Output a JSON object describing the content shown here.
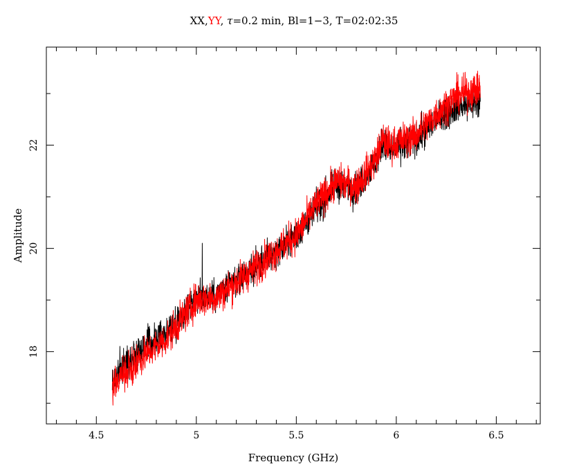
{
  "chart_data": {
    "type": "line",
    "title_parts": [
      {
        "text": "XX",
        "color": "#000000"
      },
      {
        "text": ",",
        "color": "#000000"
      },
      {
        "text": "YY",
        "color": "#ff0000"
      },
      {
        "text": ", ",
        "color": "#000000"
      },
      {
        "text": "τ",
        "color": "#000000",
        "italic": true
      },
      {
        "text": "=0.2 min, Bl=1−3, T=02:02:35",
        "color": "#000000"
      }
    ],
    "xlabel": "Frequency (GHz)",
    "ylabel": "Amplitude",
    "xlim": [
      4.25,
      6.72
    ],
    "ylim": [
      16.6,
      23.9
    ],
    "x_ticks": [
      {
        "value": 4.5,
        "label": "4.5"
      },
      {
        "value": 5,
        "label": "5"
      },
      {
        "value": 5.5,
        "label": "5.5"
      },
      {
        "value": 6,
        "label": "6"
      },
      {
        "value": 6.5,
        "label": "6.5"
      }
    ],
    "y_ticks": [
      {
        "value": 18,
        "label": "18"
      },
      {
        "value": 20,
        "label": "20"
      },
      {
        "value": 22,
        "label": "22"
      }
    ],
    "x_minor_step": 0.1,
    "y_minor_step": 1,
    "grid": false,
    "series": [
      {
        "name": "XX",
        "color": "#000000",
        "trend_x": [
          4.58,
          4.7,
          4.85,
          5.0,
          5.1,
          5.3,
          5.5,
          5.6,
          5.7,
          5.8,
          5.9,
          5.93,
          5.97,
          6.1,
          6.2,
          6.3,
          6.42
        ],
        "trend_y": [
          17.45,
          18.0,
          18.35,
          19.05,
          19.1,
          19.65,
          20.25,
          20.75,
          21.25,
          21.15,
          21.7,
          22.05,
          21.9,
          22.1,
          22.5,
          22.75,
          22.8
        ],
        "noise": 0.22,
        "spikes": [
          {
            "x": 5.03,
            "y": 20.1
          }
        ]
      },
      {
        "name": "YY",
        "color": "#ff0000",
        "trend_x": [
          4.58,
          4.7,
          4.85,
          5.0,
          5.1,
          5.3,
          5.5,
          5.6,
          5.7,
          5.8,
          5.9,
          5.93,
          5.97,
          6.1,
          6.2,
          6.3,
          6.42
        ],
        "trend_y": [
          17.35,
          17.8,
          18.25,
          19.0,
          19.05,
          19.65,
          20.25,
          20.85,
          21.3,
          21.2,
          21.75,
          22.1,
          22.0,
          22.2,
          22.6,
          22.95,
          23.1
        ],
        "noise": 0.24,
        "spikes": []
      }
    ]
  }
}
